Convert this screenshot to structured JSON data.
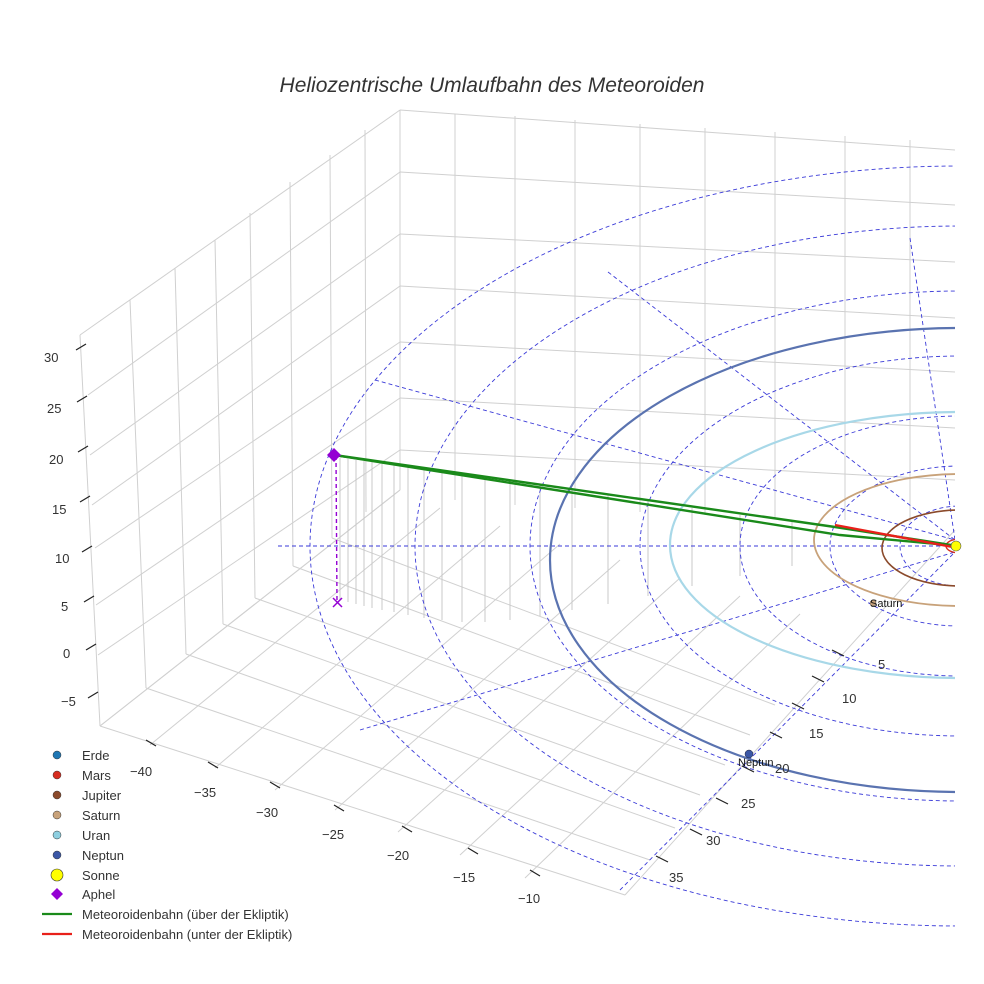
{
  "chart_data": {
    "type": "line",
    "title": "Heliozentrische Umlaufbahn des Meteoroiden",
    "xlabel": "",
    "ylabel": "",
    "zlabel": "",
    "x_ticks": [
      "−40",
      "−35",
      "−30",
      "−25",
      "−20",
      "−15",
      "−10"
    ],
    "y_ticks": [
      "5",
      "10",
      "15",
      "20",
      "25",
      "30",
      "35"
    ],
    "z_ticks": [
      "30",
      "25",
      "20",
      "15",
      "10",
      "5",
      "0",
      "−5"
    ],
    "xlim": [
      -42,
      0
    ],
    "ylim": [
      0,
      37
    ],
    "zlim": [
      -7,
      31
    ],
    "planet_labels": [
      "Saturn",
      "Neptun"
    ],
    "legend": [
      {
        "label": "Erde",
        "color": "#1f77b4",
        "marker": "circle"
      },
      {
        "label": "Mars",
        "color": "#d62d20",
        "marker": "circle"
      },
      {
        "label": "Jupiter",
        "color": "#8b4a2b",
        "marker": "circle"
      },
      {
        "label": "Saturn",
        "color": "#c8a27a",
        "marker": "circle"
      },
      {
        "label": "Uran",
        "color": "#8ecfe0",
        "marker": "circle"
      },
      {
        "label": "Neptun",
        "color": "#3b57a6",
        "marker": "circle"
      },
      {
        "label": "Sonne",
        "color": "#ffff00",
        "marker": "big-circle"
      },
      {
        "label": "Aphel",
        "color": "#9400d3",
        "marker": "diamond"
      },
      {
        "label": "Meteoroidenbahn (über der Ekliptik)",
        "color": "#1a8a1a",
        "marker": "line"
      },
      {
        "label": "Meteoroidenbahn (unter der Ekliptik)",
        "color": "#e8201a",
        "marker": "line"
      }
    ],
    "series": [
      {
        "name": "Meteoroidenbahn (über der Ekliptik)",
        "aphelion_distance_au": 38.5,
        "aphelion_height": 20
      },
      {
        "name": "Meteoroidenbahn (unter der Ekliptik)",
        "segment": "near perihelion"
      }
    ],
    "planet_orbits_au": [
      {
        "name": "Jupiter",
        "radius": 5.2
      },
      {
        "name": "Saturn",
        "radius": 9.5
      },
      {
        "name": "Uran",
        "radius": 19.2
      },
      {
        "name": "Neptun",
        "radius": 30.1
      }
    ],
    "colors": {
      "grid": "#d0d0d0",
      "reference": "#3a3ad8",
      "neptune_orbit": "#5a73b0",
      "uranus_orbit": "#a8d8e8"
    }
  }
}
